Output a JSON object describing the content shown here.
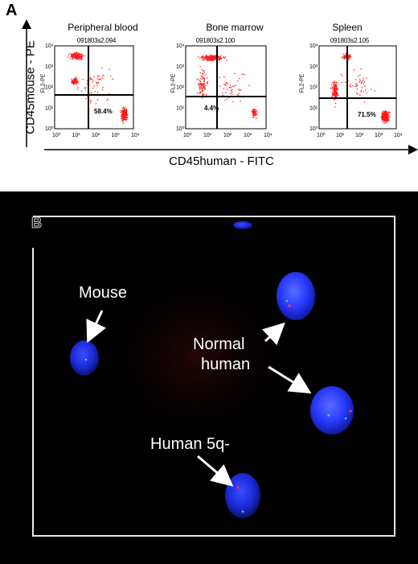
{
  "panel_a": {
    "label": "A",
    "y_axis_title": "CD45mouse - PE",
    "x_axis_title": "CD45human - FITC",
    "plots": [
      {
        "title": "Peripheral blood",
        "id": "091803s2.094",
        "y_label": "FL2-PE",
        "percent": "58.4%"
      },
      {
        "title": "Bone marrow",
        "id": "091803s2.100",
        "y_label": "FL2-PE",
        "percent": "4.4%"
      },
      {
        "title": "Spleen",
        "id": "091803s2.105",
        "y_label": "FL2-PE",
        "percent": "71.5%"
      }
    ],
    "tick_labels_y": [
      "10⁰",
      "10¹",
      "10²",
      "10³",
      "10⁴"
    ],
    "tick_labels_x": [
      "10⁰",
      "10¹",
      "10²",
      "10³",
      "10⁴"
    ],
    "dot_color": "#ff1a1a"
  },
  "panel_b": {
    "label": "B",
    "labels": {
      "mouse": "Mouse",
      "normal_line1": "Normal",
      "normal_line2": "human",
      "human5q": "Human 5q-"
    },
    "nucleus_color": "#2a3cff"
  }
}
